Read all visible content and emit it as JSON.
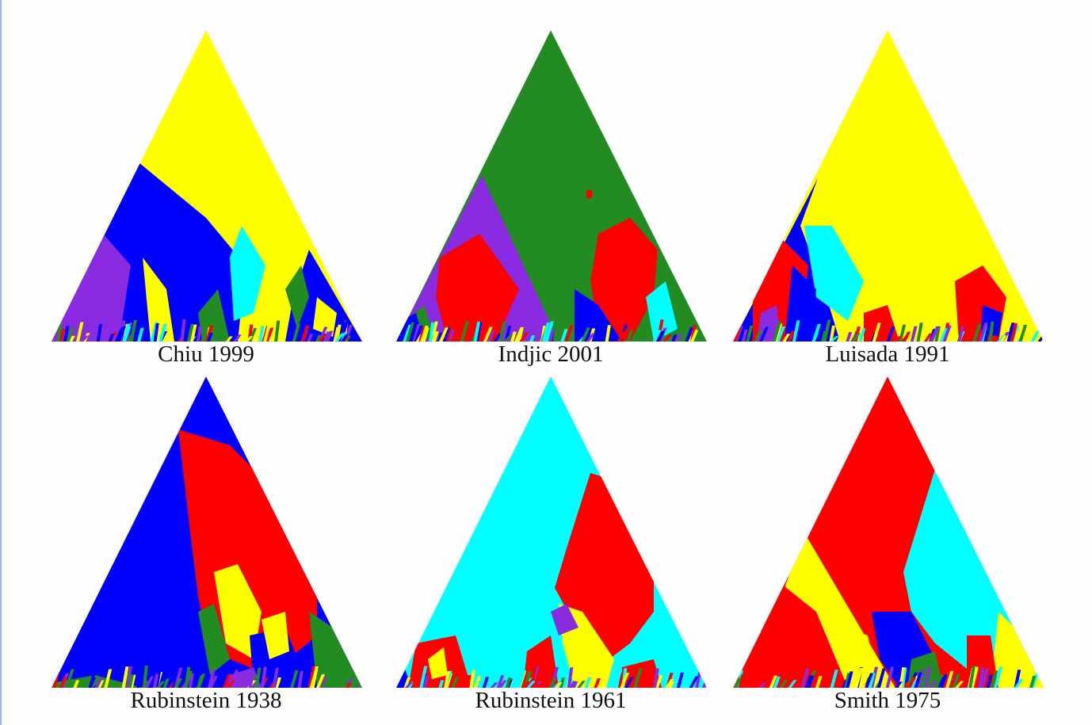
{
  "colors": {
    "yellow": "#ffff00",
    "blue": "#0000ff",
    "purple": "#8a2be2",
    "red": "#ff0000",
    "green": "#228b22",
    "cyan": "#00ffff"
  },
  "panels": [
    {
      "caption": "Chiu 1999",
      "dominant": "yellow",
      "secondary": [
        "blue",
        "purple",
        "cyan",
        "green",
        "red"
      ]
    },
    {
      "caption": "Indjic 2001",
      "dominant": "green",
      "secondary": [
        "purple",
        "red",
        "blue",
        "cyan",
        "yellow"
      ]
    },
    {
      "caption": "Luisada 1991",
      "dominant": "yellow",
      "secondary": [
        "red",
        "cyan",
        "blue",
        "purple",
        "green"
      ]
    },
    {
      "caption": "Rubinstein 1938",
      "dominant": "blue",
      "secondary": [
        "red",
        "yellow",
        "green",
        "purple"
      ]
    },
    {
      "caption": "Rubinstein 1961",
      "dominant": "cyan",
      "secondary": [
        "red",
        "yellow",
        "purple",
        "blue",
        "green"
      ]
    },
    {
      "caption": "Smith 1975",
      "dominant": "red",
      "secondary": [
        "cyan",
        "yellow",
        "blue",
        "green",
        "purple"
      ]
    }
  ]
}
